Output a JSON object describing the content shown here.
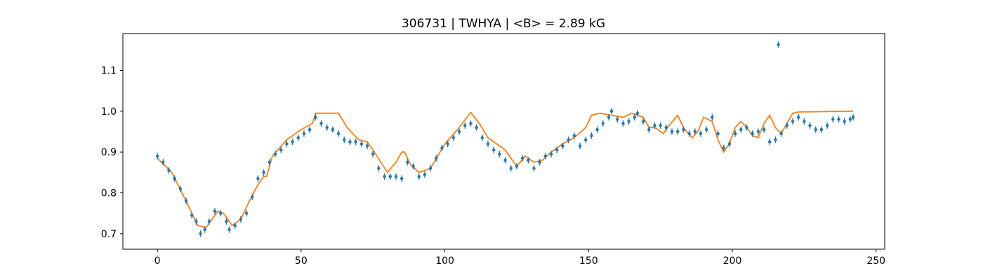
{
  "chart_data": {
    "type": "scatter",
    "title": "306731 | TWHYA | <B> = 2.89 kG",
    "xlabel": "",
    "ylabel": "",
    "xlim": [
      -12,
      253
    ],
    "ylim": [
      0.662,
      1.19
    ],
    "xticks": [
      0,
      50,
      100,
      150,
      200,
      250
    ],
    "yticks": [
      0.7,
      0.8,
      0.9,
      1.0,
      1.1
    ],
    "xtick_labels": [
      "0",
      "50",
      "100",
      "150",
      "200",
      "250"
    ],
    "ytick_labels": [
      "0.7",
      "0.8",
      "0.9",
      "1.0",
      "1.1"
    ],
    "grid": false,
    "legend": false,
    "series": [
      {
        "kind": "errorbar-points",
        "color": "#1f77b4",
        "y_error": 0.008,
        "points": [
          [
            0,
            0.89
          ],
          [
            2,
            0.875
          ],
          [
            4,
            0.855
          ],
          [
            6,
            0.835
          ],
          [
            8,
            0.81
          ],
          [
            10,
            0.78
          ],
          [
            12,
            0.745
          ],
          [
            13.5,
            0.73
          ],
          [
            15,
            0.7
          ],
          [
            16.5,
            0.71
          ],
          [
            18,
            0.73
          ],
          [
            20,
            0.755
          ],
          [
            22,
            0.75
          ],
          [
            24,
            0.73
          ],
          [
            25,
            0.71
          ],
          [
            27,
            0.72
          ],
          [
            29,
            0.735
          ],
          [
            31,
            0.75
          ],
          [
            33,
            0.79
          ],
          [
            35,
            0.835
          ],
          [
            37,
            0.85
          ],
          [
            39,
            0.875
          ],
          [
            41,
            0.895
          ],
          [
            43,
            0.905
          ],
          [
            45,
            0.92
          ],
          [
            47,
            0.925
          ],
          [
            49,
            0.935
          ],
          [
            51,
            0.945
          ],
          [
            53,
            0.955
          ],
          [
            55,
            0.985
          ],
          [
            57,
            0.97
          ],
          [
            59,
            0.96
          ],
          [
            61,
            0.955
          ],
          [
            63,
            0.945
          ],
          [
            65,
            0.93
          ],
          [
            67,
            0.925
          ],
          [
            69,
            0.925
          ],
          [
            71,
            0.92
          ],
          [
            73,
            0.915
          ],
          [
            75,
            0.895
          ],
          [
            77,
            0.86
          ],
          [
            79,
            0.84
          ],
          [
            81,
            0.84
          ],
          [
            83,
            0.84
          ],
          [
            85,
            0.835
          ],
          [
            87,
            0.875
          ],
          [
            89,
            0.865
          ],
          [
            91,
            0.84
          ],
          [
            93,
            0.845
          ],
          [
            95,
            0.86
          ],
          [
            97,
            0.885
          ],
          [
            99,
            0.91
          ],
          [
            101,
            0.92
          ],
          [
            103,
            0.935
          ],
          [
            105,
            0.95
          ],
          [
            107,
            0.965
          ],
          [
            109,
            0.97
          ],
          [
            111,
            0.96
          ],
          [
            113,
            0.935
          ],
          [
            115,
            0.92
          ],
          [
            117,
            0.905
          ],
          [
            119,
            0.895
          ],
          [
            121,
            0.88
          ],
          [
            123,
            0.86
          ],
          [
            125,
            0.865
          ],
          [
            127,
            0.885
          ],
          [
            129,
            0.88
          ],
          [
            131,
            0.86
          ],
          [
            133,
            0.875
          ],
          [
            135,
            0.89
          ],
          [
            137,
            0.895
          ],
          [
            139,
            0.905
          ],
          [
            141,
            0.915
          ],
          [
            143,
            0.93
          ],
          [
            145,
            0.94
          ],
          [
            147,
            0.915
          ],
          [
            149,
            0.93
          ],
          [
            151,
            0.94
          ],
          [
            153,
            0.955
          ],
          [
            155,
            0.97
          ],
          [
            157,
            0.985
          ],
          [
            158,
            1.0
          ],
          [
            160,
            0.98
          ],
          [
            162,
            0.97
          ],
          [
            164,
            0.975
          ],
          [
            166,
            0.985
          ],
          [
            167,
            0.995
          ],
          [
            169,
            0.975
          ],
          [
            171,
            0.955
          ],
          [
            173,
            0.965
          ],
          [
            175,
            0.965
          ],
          [
            177,
            0.96
          ],
          [
            179,
            0.95
          ],
          [
            181,
            0.95
          ],
          [
            183,
            0.955
          ],
          [
            185,
            0.945
          ],
          [
            187,
            0.95
          ],
          [
            189,
            0.945
          ],
          [
            191,
            0.955
          ],
          [
            193,
            0.985
          ],
          [
            195,
            0.945
          ],
          [
            197,
            0.91
          ],
          [
            199,
            0.92
          ],
          [
            201,
            0.945
          ],
          [
            203,
            0.955
          ],
          [
            205,
            0.96
          ],
          [
            207,
            0.945
          ],
          [
            209,
            0.95
          ],
          [
            211,
            0.955
          ],
          [
            213,
            0.925
          ],
          [
            215,
            0.93
          ],
          [
            216,
            1.163
          ],
          [
            217,
            0.945
          ],
          [
            219,
            0.965
          ],
          [
            221,
            0.975
          ],
          [
            223,
            0.985
          ],
          [
            225,
            0.975
          ],
          [
            227,
            0.965
          ],
          [
            229,
            0.955
          ],
          [
            231,
            0.955
          ],
          [
            233,
            0.965
          ],
          [
            235,
            0.98
          ],
          [
            237,
            0.98
          ],
          [
            239,
            0.975
          ],
          [
            241,
            0.98
          ],
          [
            242,
            0.985
          ]
        ]
      },
      {
        "kind": "line",
        "color": "#ff7f0e",
        "points": [
          [
            0,
            0.885
          ],
          [
            5,
            0.85
          ],
          [
            10,
            0.78
          ],
          [
            14,
            0.72
          ],
          [
            17,
            0.715
          ],
          [
            19,
            0.735
          ],
          [
            21,
            0.755
          ],
          [
            23,
            0.75
          ],
          [
            26,
            0.72
          ],
          [
            29,
            0.735
          ],
          [
            32,
            0.78
          ],
          [
            35,
            0.82
          ],
          [
            37,
            0.84
          ],
          [
            38,
            0.84
          ],
          [
            40,
            0.89
          ],
          [
            45,
            0.93
          ],
          [
            50,
            0.955
          ],
          [
            54,
            0.97
          ],
          [
            55,
            0.995
          ],
          [
            63,
            0.995
          ],
          [
            66,
            0.96
          ],
          [
            70,
            0.93
          ],
          [
            73,
            0.925
          ],
          [
            75,
            0.905
          ],
          [
            80,
            0.85
          ],
          [
            83,
            0.875
          ],
          [
            85,
            0.9
          ],
          [
            86,
            0.9
          ],
          [
            88,
            0.87
          ],
          [
            91,
            0.85
          ],
          [
            95,
            0.86
          ],
          [
            100,
            0.92
          ],
          [
            105,
            0.96
          ],
          [
            109,
            0.997
          ],
          [
            112,
            0.97
          ],
          [
            115,
            0.935
          ],
          [
            118,
            0.92
          ],
          [
            121,
            0.905
          ],
          [
            125,
            0.865
          ],
          [
            128,
            0.89
          ],
          [
            131,
            0.875
          ],
          [
            134,
            0.88
          ],
          [
            137,
            0.9
          ],
          [
            141,
            0.92
          ],
          [
            145,
            0.935
          ],
          [
            149,
            0.96
          ],
          [
            151,
            0.99
          ],
          [
            154,
            0.995
          ],
          [
            158,
            0.99
          ],
          [
            162,
            0.985
          ],
          [
            165,
            0.995
          ],
          [
            169,
            0.985
          ],
          [
            171,
            0.96
          ],
          [
            173,
            0.96
          ],
          [
            176,
            0.945
          ],
          [
            178,
            0.965
          ],
          [
            181,
            0.99
          ],
          [
            183,
            0.96
          ],
          [
            186,
            0.935
          ],
          [
            188,
            0.95
          ],
          [
            190,
            0.985
          ],
          [
            193,
            0.975
          ],
          [
            195,
            0.93
          ],
          [
            197,
            0.9
          ],
          [
            199,
            0.92
          ],
          [
            201,
            0.96
          ],
          [
            203,
            0.975
          ],
          [
            205,
            0.96
          ],
          [
            207,
            0.94
          ],
          [
            209,
            0.935
          ],
          [
            211,
            0.97
          ],
          [
            213,
            0.99
          ],
          [
            215,
            0.96
          ],
          [
            217,
            0.945
          ],
          [
            219,
            0.97
          ],
          [
            221,
            0.995
          ],
          [
            223,
            0.998
          ],
          [
            242,
            1.0
          ]
        ]
      }
    ]
  }
}
